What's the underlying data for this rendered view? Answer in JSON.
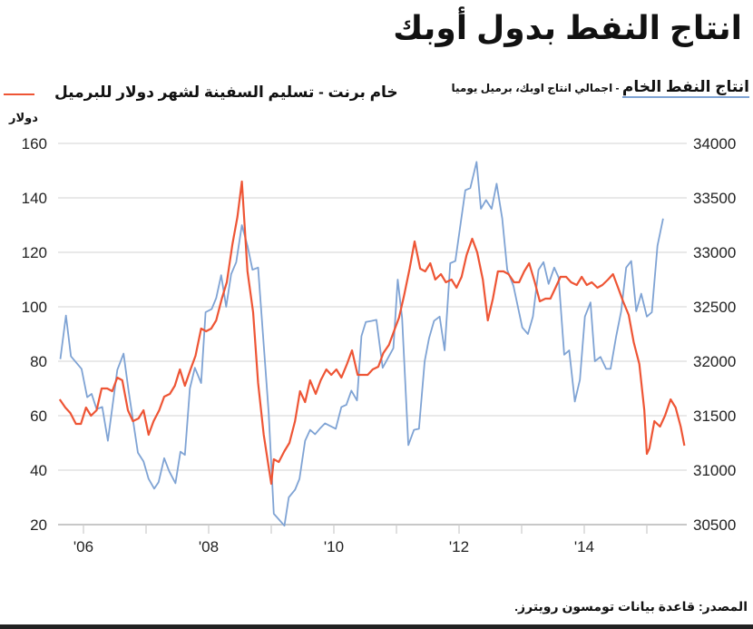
{
  "title": "انتاج النفط بدول أوبك",
  "legend": {
    "opec_main": "انتاج النفط الخام",
    "opec_sub": " - اجمالي انتاج اوبك، برميل يوميا",
    "brent": "خام برنت - تسليم السفينة لشهر   دولار للبرميل"
  },
  "unit_left": "دولار",
  "source": "المصدر: قاعدة بيانات تومسون رويترز.",
  "colors": {
    "brent": "#ee5535",
    "opec": "#7fa3d4",
    "grid": "#dcdcdc"
  },
  "chart_data": {
    "type": "line",
    "title": "انتاج النفط بدول أوبك",
    "x_ticks": [
      "'06",
      "'08",
      "'10",
      "'12",
      "'14"
    ],
    "x_tick_years": [
      2006,
      2008,
      2010,
      2012,
      2014
    ],
    "xlim": [
      2005.62,
      2015.62
    ],
    "y_left": {
      "label": "دولار",
      "ticks": [
        20,
        40,
        60,
        80,
        100,
        120,
        140,
        160
      ],
      "lim": [
        20,
        160
      ]
    },
    "y_right": {
      "ticks": [
        30500,
        31000,
        31500,
        32000,
        32500,
        33000,
        33500,
        34000
      ],
      "lim": [
        30500,
        34000
      ]
    },
    "grid": true,
    "legend_placement": "top",
    "series": [
      {
        "name": "خام برنت - تسليم السفينة لشهر   دولار للبرميل",
        "axis": "left",
        "points": [
          [
            2005.62,
            66
          ],
          [
            2005.71,
            63
          ],
          [
            2005.79,
            61
          ],
          [
            2005.88,
            57
          ],
          [
            2005.96,
            57
          ],
          [
            2006.04,
            63
          ],
          [
            2006.12,
            60
          ],
          [
            2006.21,
            62
          ],
          [
            2006.29,
            70
          ],
          [
            2006.38,
            70
          ],
          [
            2006.46,
            69
          ],
          [
            2006.54,
            74
          ],
          [
            2006.62,
            73
          ],
          [
            2006.71,
            62
          ],
          [
            2006.79,
            58
          ],
          [
            2006.88,
            59
          ],
          [
            2006.96,
            62
          ],
          [
            2007.04,
            53
          ],
          [
            2007.12,
            58
          ],
          [
            2007.21,
            62
          ],
          [
            2007.29,
            67
          ],
          [
            2007.38,
            68
          ],
          [
            2007.46,
            71
          ],
          [
            2007.54,
            77
          ],
          [
            2007.62,
            71
          ],
          [
            2007.71,
            77
          ],
          [
            2007.79,
            82
          ],
          [
            2007.88,
            92
          ],
          [
            2007.96,
            91
          ],
          [
            2008.04,
            92
          ],
          [
            2008.12,
            95
          ],
          [
            2008.21,
            103
          ],
          [
            2008.29,
            109
          ],
          [
            2008.38,
            123
          ],
          [
            2008.46,
            133
          ],
          [
            2008.53,
            146
          ],
          [
            2008.58,
            128
          ],
          [
            2008.62,
            113
          ],
          [
            2008.71,
            98
          ],
          [
            2008.79,
            72
          ],
          [
            2008.88,
            53
          ],
          [
            2008.96,
            41
          ],
          [
            2009.0,
            35
          ],
          [
            2009.04,
            44
          ],
          [
            2009.12,
            43
          ],
          [
            2009.21,
            47
          ],
          [
            2009.29,
            50
          ],
          [
            2009.38,
            58
          ],
          [
            2009.46,
            69
          ],
          [
            2009.54,
            65
          ],
          [
            2009.62,
            73
          ],
          [
            2009.71,
            68
          ],
          [
            2009.79,
            73
          ],
          [
            2009.88,
            77
          ],
          [
            2009.96,
            75
          ],
          [
            2010.04,
            77
          ],
          [
            2010.12,
            74
          ],
          [
            2010.21,
            79
          ],
          [
            2010.29,
            84
          ],
          [
            2010.38,
            75
          ],
          [
            2010.46,
            75
          ],
          [
            2010.54,
            75
          ],
          [
            2010.62,
            77
          ],
          [
            2010.71,
            78
          ],
          [
            2010.79,
            83
          ],
          [
            2010.88,
            86
          ],
          [
            2010.96,
            91
          ],
          [
            2011.04,
            96
          ],
          [
            2011.12,
            104
          ],
          [
            2011.21,
            114
          ],
          [
            2011.29,
            124
          ],
          [
            2011.38,
            114
          ],
          [
            2011.46,
            113
          ],
          [
            2011.54,
            116
          ],
          [
            2011.62,
            110
          ],
          [
            2011.71,
            112
          ],
          [
            2011.79,
            109
          ],
          [
            2011.88,
            110
          ],
          [
            2011.96,
            107
          ],
          [
            2012.04,
            111
          ],
          [
            2012.12,
            119
          ],
          [
            2012.21,
            125
          ],
          [
            2012.29,
            120
          ],
          [
            2012.38,
            110
          ],
          [
            2012.46,
            95
          ],
          [
            2012.54,
            103
          ],
          [
            2012.62,
            113
          ],
          [
            2012.71,
            113
          ],
          [
            2012.79,
            112
          ],
          [
            2012.88,
            109
          ],
          [
            2012.96,
            109
          ],
          [
            2013.04,
            113
          ],
          [
            2013.12,
            116
          ],
          [
            2013.21,
            109
          ],
          [
            2013.29,
            102
          ],
          [
            2013.38,
            103
          ],
          [
            2013.46,
            103
          ],
          [
            2013.54,
            107
          ],
          [
            2013.62,
            111
          ],
          [
            2013.71,
            111
          ],
          [
            2013.79,
            109
          ],
          [
            2013.88,
            108
          ],
          [
            2013.96,
            111
          ],
          [
            2014.04,
            108
          ],
          [
            2014.12,
            109
          ],
          [
            2014.21,
            107
          ],
          [
            2014.29,
            108
          ],
          [
            2014.38,
            110
          ],
          [
            2014.46,
            112
          ],
          [
            2014.54,
            107
          ],
          [
            2014.62,
            102
          ],
          [
            2014.71,
            97
          ],
          [
            2014.79,
            87
          ],
          [
            2014.88,
            79
          ],
          [
            2014.96,
            62
          ],
          [
            2015.0,
            46
          ],
          [
            2015.04,
            48
          ],
          [
            2015.12,
            58
          ],
          [
            2015.21,
            56
          ],
          [
            2015.29,
            60
          ],
          [
            2015.38,
            66
          ],
          [
            2015.46,
            63
          ],
          [
            2015.54,
            56
          ],
          [
            2015.6,
            49
          ]
        ]
      },
      {
        "name": "انتاج النفط الخام - اجمالي انتاج اوبك، برميل يوميا",
        "axis": "right",
        "points": [
          [
            2005.63,
            32020
          ],
          [
            2005.72,
            32420
          ],
          [
            2005.8,
            32045
          ],
          [
            2005.97,
            31930
          ],
          [
            2006.06,
            31670
          ],
          [
            2006.13,
            31700
          ],
          [
            2006.21,
            31560
          ],
          [
            2006.3,
            31580
          ],
          [
            2006.39,
            31270
          ],
          [
            2006.54,
            31920
          ],
          [
            2006.64,
            32070
          ],
          [
            2006.72,
            31730
          ],
          [
            2006.87,
            31160
          ],
          [
            2006.96,
            31080
          ],
          [
            2007.04,
            30920
          ],
          [
            2007.13,
            30830
          ],
          [
            2007.2,
            30890
          ],
          [
            2007.29,
            31110
          ],
          [
            2007.37,
            30990
          ],
          [
            2007.47,
            30880
          ],
          [
            2007.55,
            31170
          ],
          [
            2007.62,
            31140
          ],
          [
            2007.7,
            31750
          ],
          [
            2007.78,
            31940
          ],
          [
            2007.88,
            31800
          ],
          [
            2007.95,
            32450
          ],
          [
            2008.05,
            32480
          ],
          [
            2008.12,
            32580
          ],
          [
            2008.2,
            32790
          ],
          [
            2008.28,
            32500
          ],
          [
            2008.36,
            32800
          ],
          [
            2008.44,
            32910
          ],
          [
            2008.53,
            33250
          ],
          [
            2008.62,
            33060
          ],
          [
            2008.7,
            32840
          ],
          [
            2008.79,
            32860
          ],
          [
            2008.96,
            31520
          ],
          [
            2009.04,
            30600
          ],
          [
            2009.21,
            30490
          ],
          [
            2009.28,
            30750
          ],
          [
            2009.38,
            30820
          ],
          [
            2009.45,
            30920
          ],
          [
            2009.54,
            31270
          ],
          [
            2009.62,
            31370
          ],
          [
            2009.7,
            31330
          ],
          [
            2009.79,
            31390
          ],
          [
            2009.86,
            31430
          ],
          [
            2010.03,
            31380
          ],
          [
            2010.12,
            31580
          ],
          [
            2010.2,
            31600
          ],
          [
            2010.28,
            31730
          ],
          [
            2010.37,
            31640
          ],
          [
            2010.44,
            32230
          ],
          [
            2010.51,
            32360
          ],
          [
            2010.6,
            32370
          ],
          [
            2010.68,
            32380
          ],
          [
            2010.78,
            31940
          ],
          [
            2010.95,
            32120
          ],
          [
            2011.02,
            32750
          ],
          [
            2011.09,
            32400
          ],
          [
            2011.19,
            31230
          ],
          [
            2011.28,
            31370
          ],
          [
            2011.36,
            31380
          ],
          [
            2011.45,
            32000
          ],
          [
            2011.52,
            32210
          ],
          [
            2011.6,
            32370
          ],
          [
            2011.69,
            32410
          ],
          [
            2011.77,
            32100
          ],
          [
            2011.86,
            32900
          ],
          [
            2011.94,
            32920
          ],
          [
            2012.1,
            33570
          ],
          [
            2012.18,
            33590
          ],
          [
            2012.28,
            33830
          ],
          [
            2012.35,
            33400
          ],
          [
            2012.43,
            33480
          ],
          [
            2012.52,
            33400
          ],
          [
            2012.6,
            33630
          ],
          [
            2012.69,
            33310
          ],
          [
            2012.77,
            32840
          ],
          [
            2012.87,
            32690
          ],
          [
            2013.01,
            32310
          ],
          [
            2013.1,
            32250
          ],
          [
            2013.18,
            32410
          ],
          [
            2013.27,
            32840
          ],
          [
            2013.35,
            32910
          ],
          [
            2013.43,
            32710
          ],
          [
            2013.52,
            32860
          ],
          [
            2013.59,
            32770
          ],
          [
            2013.68,
            32060
          ],
          [
            2013.76,
            32100
          ],
          [
            2013.85,
            31630
          ],
          [
            2013.93,
            31830
          ],
          [
            2014.01,
            32410
          ],
          [
            2014.1,
            32540
          ],
          [
            2014.17,
            32000
          ],
          [
            2014.26,
            32040
          ],
          [
            2014.35,
            31930
          ],
          [
            2014.42,
            31930
          ],
          [
            2014.51,
            32230
          ],
          [
            2014.59,
            32460
          ],
          [
            2014.67,
            32860
          ],
          [
            2014.75,
            32920
          ],
          [
            2014.83,
            32460
          ],
          [
            2014.91,
            32620
          ],
          [
            2015.0,
            32410
          ],
          [
            2015.08,
            32450
          ],
          [
            2015.17,
            33060
          ],
          [
            2015.26,
            33310
          ]
        ]
      }
    ]
  }
}
